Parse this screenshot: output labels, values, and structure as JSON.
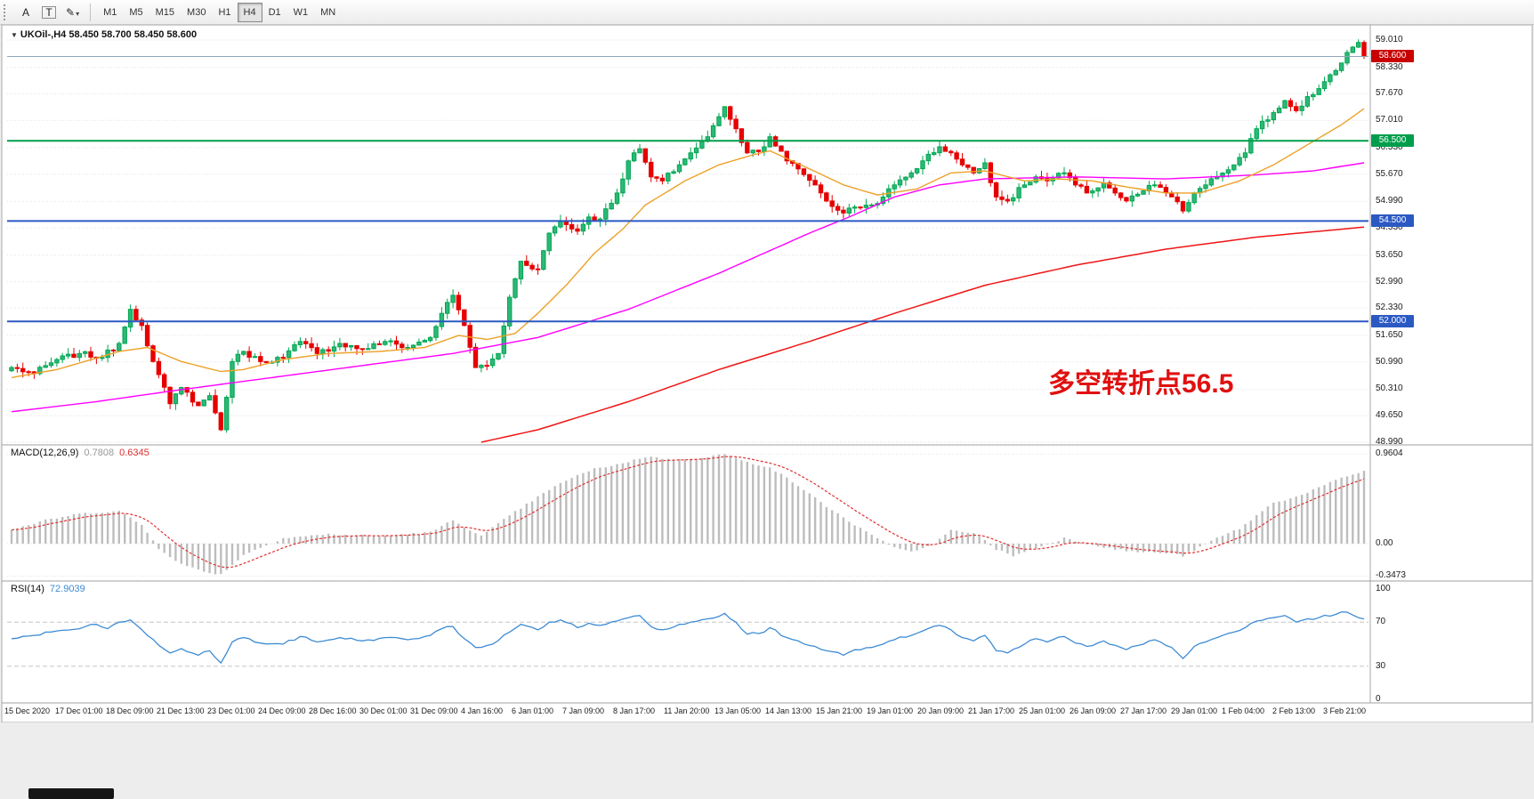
{
  "toolbar": {
    "tools": [
      {
        "name": "annotation-tool",
        "glyph": "A"
      },
      {
        "name": "text-tool",
        "glyph": "T"
      },
      {
        "name": "draw-tool",
        "glyph": "✎"
      }
    ],
    "timeframes": [
      {
        "label": "M1",
        "active": false
      },
      {
        "label": "M5",
        "active": false
      },
      {
        "label": "M15",
        "active": false
      },
      {
        "label": "M30",
        "active": false
      },
      {
        "label": "H1",
        "active": false
      },
      {
        "label": "H4",
        "active": true
      },
      {
        "label": "D1",
        "active": false
      },
      {
        "label": "W1",
        "active": false
      },
      {
        "label": "MN",
        "active": false
      }
    ]
  },
  "chart": {
    "symbol_title": "UKOil-,H4",
    "ohlc": "58.450 58.700 58.450 58.600",
    "annotation": "多空转折点56.5",
    "current_price_label": "58.600",
    "current_price": 58.6,
    "levels": [
      {
        "price": 56.5,
        "label": "56.500",
        "color": "#009e4c"
      },
      {
        "price": 54.5,
        "label": "54.500",
        "color": "#2b59c3"
      },
      {
        "price": 52.0,
        "label": "52.000",
        "color": "#2b59c3"
      }
    ]
  },
  "macd": {
    "label": "MACD(12,26,9)",
    "main_value": "0.7808",
    "signal_value": "0.6345",
    "y_ticks": [
      "0.9604",
      "0.00",
      "-0.3473"
    ]
  },
  "rsi": {
    "label": "RSI(14)",
    "value": "72.9039",
    "y_ticks": [
      "100",
      "70",
      "30",
      "0"
    ]
  },
  "chart_data": {
    "type": "candlestick",
    "symbol": "UKOil-",
    "timeframe": "H4",
    "title": "UKOil-,H4 58.450 58.700 58.450 58.600",
    "ylim": [
      48.99,
      59.165
    ],
    "y_ticks": [
      59.01,
      58.33,
      57.67,
      57.01,
      56.33,
      55.67,
      54.99,
      54.33,
      53.65,
      52.99,
      52.33,
      51.65,
      50.99,
      50.31,
      49.65,
      48.99
    ],
    "x_labels": [
      "15 Dec 2020",
      "17 Dec 01:00",
      "18 Dec 09:00",
      "21 Dec 13:00",
      "23 Dec 01:00",
      "24 Dec 09:00",
      "28 Dec 16:00",
      "30 Dec 01:00",
      "31 Dec 09:00",
      "4 Jan 16:00",
      "6 Jan 01:00",
      "7 Jan 09:00",
      "8 Jan 17:00",
      "11 Jan 20:00",
      "13 Jan 05:00",
      "14 Jan 13:00",
      "15 Jan 21:00",
      "19 Jan 01:00",
      "20 Jan 09:00",
      "21 Jan 17:00",
      "25 Jan 01:00",
      "26 Jan 09:00",
      "27 Jan 17:00",
      "29 Jan 01:00",
      "1 Feb 04:00",
      "2 Feb 13:00",
      "3 Feb 21:00"
    ],
    "candles_count": 240,
    "close_anchors": [
      [
        0,
        50.85
      ],
      [
        4,
        50.7
      ],
      [
        8,
        51.05
      ],
      [
        12,
        51.2
      ],
      [
        16,
        51.1
      ],
      [
        19,
        51.45
      ],
      [
        21,
        52.3
      ],
      [
        23,
        51.9
      ],
      [
        25,
        51.0
      ],
      [
        28,
        49.95
      ],
      [
        30,
        50.35
      ],
      [
        33,
        49.9
      ],
      [
        35,
        50.15
      ],
      [
        37,
        49.3
      ],
      [
        39,
        51.0
      ],
      [
        41,
        51.25
      ],
      [
        44,
        51.0
      ],
      [
        48,
        51.1
      ],
      [
        51,
        51.5
      ],
      [
        54,
        51.2
      ],
      [
        58,
        51.45
      ],
      [
        62,
        51.3
      ],
      [
        66,
        51.5
      ],
      [
        70,
        51.35
      ],
      [
        74,
        51.6
      ],
      [
        76,
        52.2
      ],
      [
        78,
        52.65
      ],
      [
        80,
        51.9
      ],
      [
        82,
        50.85
      ],
      [
        84,
        50.9
      ],
      [
        86,
        51.2
      ],
      [
        88,
        52.6
      ],
      [
        90,
        53.5
      ],
      [
        93,
        53.3
      ],
      [
        95,
        54.2
      ],
      [
        97,
        54.5
      ],
      [
        100,
        54.25
      ],
      [
        102,
        54.6
      ],
      [
        104,
        54.55
      ],
      [
        107,
        55.2
      ],
      [
        109,
        56.0
      ],
      [
        111,
        56.3
      ],
      [
        113,
        55.6
      ],
      [
        115,
        55.5
      ],
      [
        118,
        55.9
      ],
      [
        120,
        56.2
      ],
      [
        123,
        56.6
      ],
      [
        125,
        57.1
      ],
      [
        126,
        57.35
      ],
      [
        128,
        56.8
      ],
      [
        130,
        56.2
      ],
      [
        133,
        56.35
      ],
      [
        134,
        56.6
      ],
      [
        137,
        56.0
      ],
      [
        139,
        55.8
      ],
      [
        142,
        55.4
      ],
      [
        144,
        55.0
      ],
      [
        147,
        54.7
      ],
      [
        149,
        54.85
      ],
      [
        152,
        54.9
      ],
      [
        154,
        55.1
      ],
      [
        156,
        55.4
      ],
      [
        159,
        55.7
      ],
      [
        161,
        56.0
      ],
      [
        164,
        56.35
      ],
      [
        166,
        56.2
      ],
      [
        168,
        55.9
      ],
      [
        170,
        55.7
      ],
      [
        172,
        55.95
      ],
      [
        174,
        55.1
      ],
      [
        176,
        55.0
      ],
      [
        179,
        55.4
      ],
      [
        181,
        55.6
      ],
      [
        183,
        55.5
      ],
      [
        186,
        55.7
      ],
      [
        188,
        55.4
      ],
      [
        190,
        55.2
      ],
      [
        193,
        55.45
      ],
      [
        195,
        55.2
      ],
      [
        197,
        55.0
      ],
      [
        200,
        55.25
      ],
      [
        202,
        55.4
      ],
      [
        205,
        55.1
      ],
      [
        207,
        54.75
      ],
      [
        209,
        55.2
      ],
      [
        211,
        55.4
      ],
      [
        213,
        55.6
      ],
      [
        216,
        55.9
      ],
      [
        218,
        56.2
      ],
      [
        220,
        56.8
      ],
      [
        223,
        57.2
      ],
      [
        225,
        57.5
      ],
      [
        227,
        57.25
      ],
      [
        229,
        57.6
      ],
      [
        231,
        57.8
      ],
      [
        234,
        58.25
      ],
      [
        236,
        58.7
      ],
      [
        238,
        58.95
      ],
      [
        239,
        58.6
      ]
    ],
    "ma_fast_anchors": [
      [
        0,
        50.6
      ],
      [
        8,
        50.8
      ],
      [
        19,
        51.25
      ],
      [
        24,
        51.35
      ],
      [
        30,
        51.0
      ],
      [
        37,
        50.75
      ],
      [
        41,
        50.8
      ],
      [
        48,
        51.05
      ],
      [
        56,
        51.2
      ],
      [
        65,
        51.25
      ],
      [
        73,
        51.35
      ],
      [
        79,
        51.65
      ],
      [
        84,
        51.55
      ],
      [
        89,
        51.7
      ],
      [
        93,
        52.2
      ],
      [
        98,
        52.9
      ],
      [
        103,
        53.7
      ],
      [
        108,
        54.3
      ],
      [
        112,
        54.9
      ],
      [
        119,
        55.5
      ],
      [
        125,
        55.9
      ],
      [
        131,
        56.15
      ],
      [
        134,
        56.25
      ],
      [
        141,
        55.8
      ],
      [
        147,
        55.4
      ],
      [
        153,
        55.15
      ],
      [
        160,
        55.3
      ],
      [
        166,
        55.7
      ],
      [
        172,
        55.75
      ],
      [
        179,
        55.5
      ],
      [
        185,
        55.55
      ],
      [
        191,
        55.5
      ],
      [
        197,
        55.35
      ],
      [
        204,
        55.2
      ],
      [
        210,
        55.2
      ],
      [
        217,
        55.5
      ],
      [
        223,
        55.9
      ],
      [
        229,
        56.4
      ],
      [
        235,
        56.9
      ],
      [
        239,
        57.3
      ]
    ],
    "ma_mid_anchors": [
      [
        0,
        49.75
      ],
      [
        15,
        50.0
      ],
      [
        30,
        50.3
      ],
      [
        46,
        50.6
      ],
      [
        62,
        50.9
      ],
      [
        78,
        51.2
      ],
      [
        93,
        51.6
      ],
      [
        109,
        52.3
      ],
      [
        125,
        53.2
      ],
      [
        141,
        54.2
      ],
      [
        148,
        54.6
      ],
      [
        156,
        55.1
      ],
      [
        164,
        55.4
      ],
      [
        172,
        55.55
      ],
      [
        188,
        55.6
      ],
      [
        204,
        55.55
      ],
      [
        220,
        55.65
      ],
      [
        230,
        55.75
      ],
      [
        239,
        55.95
      ]
    ],
    "ma_slow_anchors": [
      [
        83,
        48.99
      ],
      [
        93,
        49.3
      ],
      [
        109,
        50.0
      ],
      [
        125,
        50.8
      ],
      [
        141,
        51.5
      ],
      [
        156,
        52.2
      ],
      [
        172,
        52.9
      ],
      [
        188,
        53.4
      ],
      [
        204,
        53.8
      ],
      [
        220,
        54.1
      ],
      [
        239,
        54.35
      ]
    ],
    "macd_anchors": [
      [
        0,
        0.15
      ],
      [
        6,
        0.25
      ],
      [
        12,
        0.32
      ],
      [
        19,
        0.35
      ],
      [
        23,
        0.2
      ],
      [
        26,
        -0.05
      ],
      [
        30,
        -0.22
      ],
      [
        34,
        -0.3
      ],
      [
        37,
        -0.33
      ],
      [
        41,
        -0.12
      ],
      [
        48,
        0.06
      ],
      [
        56,
        0.1
      ],
      [
        65,
        0.08
      ],
      [
        74,
        0.12
      ],
      [
        78,
        0.25
      ],
      [
        83,
        0.08
      ],
      [
        88,
        0.3
      ],
      [
        93,
        0.5
      ],
      [
        98,
        0.68
      ],
      [
        103,
        0.8
      ],
      [
        108,
        0.86
      ],
      [
        112,
        0.93
      ],
      [
        118,
        0.9
      ],
      [
        123,
        0.93
      ],
      [
        126,
        0.96
      ],
      [
        130,
        0.87
      ],
      [
        134,
        0.82
      ],
      [
        139,
        0.62
      ],
      [
        144,
        0.4
      ],
      [
        149,
        0.2
      ],
      [
        153,
        0.05
      ],
      [
        157,
        -0.06
      ],
      [
        160,
        -0.08
      ],
      [
        163,
        0.0
      ],
      [
        166,
        0.14
      ],
      [
        170,
        0.12
      ],
      [
        174,
        -0.06
      ],
      [
        177,
        -0.13
      ],
      [
        181,
        -0.05
      ],
      [
        186,
        0.06
      ],
      [
        190,
        0.0
      ],
      [
        195,
        -0.06
      ],
      [
        199,
        -0.09
      ],
      [
        204,
        -0.1
      ],
      [
        207,
        -0.13
      ],
      [
        210,
        -0.04
      ],
      [
        213,
        0.06
      ],
      [
        217,
        0.16
      ],
      [
        220,
        0.3
      ],
      [
        223,
        0.44
      ],
      [
        227,
        0.5
      ],
      [
        231,
        0.6
      ],
      [
        235,
        0.7
      ],
      [
        239,
        0.78
      ]
    ],
    "rsi_anchors": [
      [
        0,
        55
      ],
      [
        4,
        58
      ],
      [
        8,
        62
      ],
      [
        12,
        64
      ],
      [
        15,
        68
      ],
      [
        17,
        64
      ],
      [
        19,
        70
      ],
      [
        21,
        72
      ],
      [
        24,
        58
      ],
      [
        26,
        49
      ],
      [
        28,
        42
      ],
      [
        30,
        46
      ],
      [
        33,
        40
      ],
      [
        35,
        44
      ],
      [
        37,
        33
      ],
      [
        39,
        52
      ],
      [
        41,
        56
      ],
      [
        44,
        51
      ],
      [
        48,
        50
      ],
      [
        51,
        57
      ],
      [
        54,
        52
      ],
      [
        58,
        56
      ],
      [
        62,
        53
      ],
      [
        66,
        56
      ],
      [
        70,
        54
      ],
      [
        74,
        58
      ],
      [
        76,
        64
      ],
      [
        78,
        66
      ],
      [
        80,
        55
      ],
      [
        82,
        47
      ],
      [
        85,
        50
      ],
      [
        88,
        61
      ],
      [
        90,
        68
      ],
      [
        93,
        63
      ],
      [
        95,
        70
      ],
      [
        97,
        72
      ],
      [
        100,
        65
      ],
      [
        102,
        69
      ],
      [
        104,
        67
      ],
      [
        107,
        71
      ],
      [
        109,
        74
      ],
      [
        111,
        76
      ],
      [
        113,
        66
      ],
      [
        115,
        63
      ],
      [
        118,
        68
      ],
      [
        120,
        70
      ],
      [
        123,
        73
      ],
      [
        126,
        78
      ],
      [
        128,
        70
      ],
      [
        130,
        59
      ],
      [
        133,
        61
      ],
      [
        134,
        65
      ],
      [
        137,
        56
      ],
      [
        139,
        53
      ],
      [
        142,
        48
      ],
      [
        144,
        44
      ],
      [
        147,
        40
      ],
      [
        149,
        45
      ],
      [
        152,
        47
      ],
      [
        154,
        50
      ],
      [
        156,
        54
      ],
      [
        159,
        58
      ],
      [
        161,
        62
      ],
      [
        164,
        67
      ],
      [
        166,
        63
      ],
      [
        168,
        56
      ],
      [
        170,
        53
      ],
      [
        172,
        58
      ],
      [
        174,
        44
      ],
      [
        176,
        42
      ],
      [
        179,
        50
      ],
      [
        181,
        55
      ],
      [
        183,
        52
      ],
      [
        186,
        57
      ],
      [
        188,
        51
      ],
      [
        190,
        48
      ],
      [
        193,
        53
      ],
      [
        195,
        49
      ],
      [
        197,
        45
      ],
      [
        200,
        50
      ],
      [
        202,
        54
      ],
      [
        205,
        47
      ],
      [
        207,
        37
      ],
      [
        209,
        48
      ],
      [
        211,
        52
      ],
      [
        213,
        56
      ],
      [
        216,
        61
      ],
      [
        218,
        65
      ],
      [
        220,
        71
      ],
      [
        223,
        74
      ],
      [
        225,
        76
      ],
      [
        227,
        70
      ],
      [
        229,
        73
      ],
      [
        231,
        74
      ],
      [
        234,
        77
      ],
      [
        236,
        79
      ],
      [
        238,
        74
      ],
      [
        239,
        72.9
      ]
    ],
    "colors": {
      "bull": "#00a651",
      "bear": "#e60000",
      "ma_fast": "#eda128",
      "ma_mid": "#ff00ff",
      "ma_slow": "#ef1515",
      "macd_hist": "#bdbdbd",
      "macd_signal": "#e03030",
      "rsi_line": "#3d8bd4",
      "bid_line": "#8ea6ba",
      "bid_tag": "#c80000"
    }
  }
}
